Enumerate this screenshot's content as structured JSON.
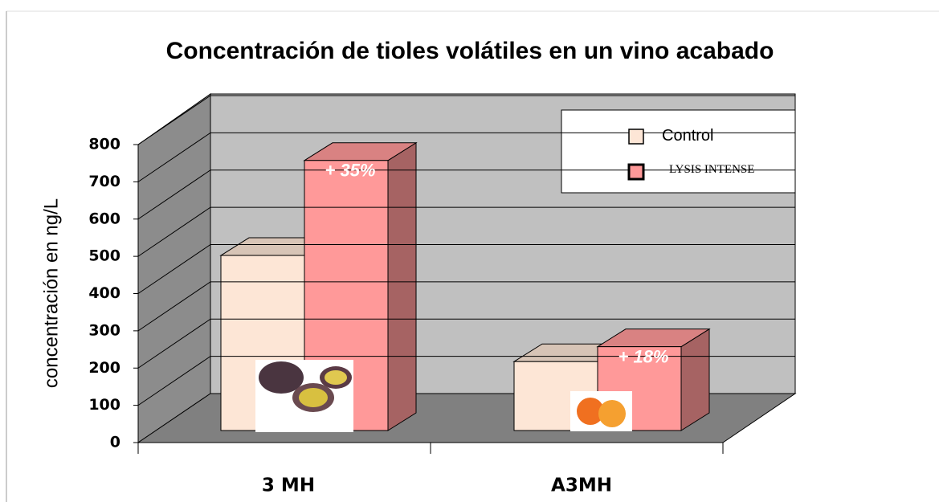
{
  "chart_data": {
    "type": "bar3d",
    "title": "Concentración de tioles volátiles en un vino acabado",
    "y_label": "concentración en ng/L",
    "categories": [
      "3 MH",
      "A3MH"
    ],
    "series": [
      {
        "name": "Control",
        "color": "#fde6d6",
        "values": [
          470,
          185
        ]
      },
      {
        "name": "LYSIS INTENSE",
        "color": "#ff9999",
        "values": [
          725,
          225
        ]
      }
    ],
    "annotations": [
      "+ 35%",
      "+ 18%"
    ],
    "ylim": [
      0,
      800
    ],
    "yticks": [
      0,
      100,
      200,
      300,
      400,
      500,
      600,
      700,
      800
    ],
    "grid": true
  }
}
